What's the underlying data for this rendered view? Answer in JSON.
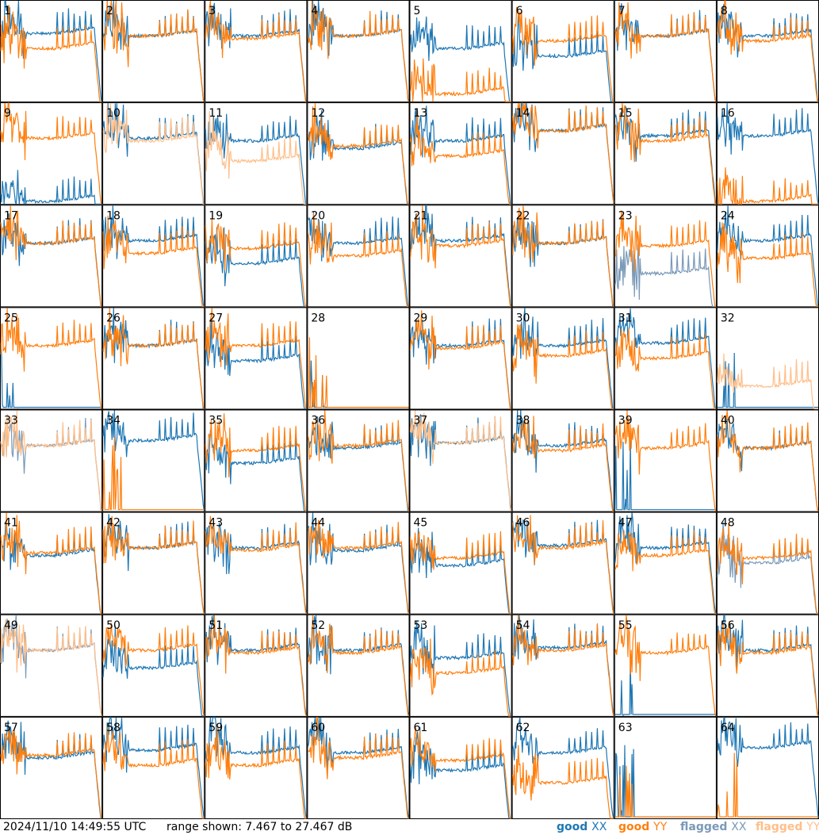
{
  "footer": {
    "timestamp": "2024/11/10 14:49:55 UTC",
    "range": "range shown: 7.467 to 27.467 dB",
    "legend": [
      {
        "key": "good_xx",
        "word": "good",
        "pol": "XX",
        "color": "#1f77b4"
      },
      {
        "key": "good_yy",
        "word": "good",
        "pol": "YY",
        "color": "#ff7f0e"
      },
      {
        "key": "flagged_xx",
        "word": "flagged",
        "pol": "XX",
        "color": "#7a99b8"
      },
      {
        "key": "flagged_yy",
        "word": "flagged",
        "pol": "YY",
        "color": "#ffbf8a"
      }
    ]
  },
  "colors": {
    "good_xx": "#1f77b4",
    "good_yy": "#ff7f0e",
    "flagged_xx": "#7a99b8",
    "flagged_yy": "#ffbf8a"
  },
  "chart_data": {
    "type": "line",
    "layout": "small-multiples 8x8",
    "ylim": [
      7.467,
      27.467
    ],
    "units": "dB",
    "tiles": [
      {
        "id": 1,
        "xx": "good",
        "yy": "good",
        "xx_level": 21,
        "yy_level": 18
      },
      {
        "id": 2,
        "xx": "good",
        "yy": "good",
        "xx_level": 20.5,
        "yy_level": 20.5
      },
      {
        "id": 3,
        "xx": "good",
        "yy": "good",
        "xx_level": 20.5,
        "yy_level": 20
      },
      {
        "id": 4,
        "xx": "good",
        "yy": "good",
        "xx_level": 20.5,
        "yy_level": 20.5
      },
      {
        "id": 5,
        "xx": "good",
        "yy": "good",
        "xx_level": 18,
        "yy_level": 9
      },
      {
        "id": 6,
        "xx": "good",
        "yy": "good",
        "xx_level": 16.5,
        "yy_level": 19.5
      },
      {
        "id": 7,
        "xx": "good",
        "yy": "good",
        "xx_level": 20.5,
        "yy_level": 20.5
      },
      {
        "id": 8,
        "xx": "good",
        "yy": "good",
        "xx_level": 20.5,
        "yy_level": 19.5
      },
      {
        "id": 9,
        "xx": "good",
        "yy": "good",
        "xx_level": 8,
        "yy_level": 20.5
      },
      {
        "id": 10,
        "xx": "good",
        "yy": "flagged",
        "xx_level": 20.5,
        "yy_level": 20
      },
      {
        "id": 11,
        "xx": "good",
        "yy": "flagged",
        "xx_level": 20,
        "yy_level": 16
      },
      {
        "id": 12,
        "xx": "good",
        "yy": "good",
        "xx_level": 18.5,
        "yy_level": 19
      },
      {
        "id": 13,
        "xx": "good",
        "yy": "good",
        "xx_level": 20,
        "yy_level": 17
      },
      {
        "id": 14,
        "xx": "good",
        "yy": "good",
        "xx_level": 22,
        "yy_level": 22
      },
      {
        "id": 15,
        "xx": "good",
        "yy": "good",
        "xx_level": 21,
        "yy_level": 20
      },
      {
        "id": 16,
        "xx": "good",
        "yy": "good",
        "xx_level": 21,
        "yy_level": 8
      },
      {
        "id": 17,
        "xx": "good",
        "yy": "good",
        "xx_level": 20,
        "yy_level": 20
      },
      {
        "id": 18,
        "xx": "good",
        "yy": "good",
        "xx_level": 20.5,
        "yy_level": 18
      },
      {
        "id": 19,
        "xx": "good",
        "yy": "good",
        "xx_level": 16,
        "yy_level": 19
      },
      {
        "id": 20,
        "xx": "good",
        "yy": "good",
        "xx_level": 20,
        "yy_level": 17.5
      },
      {
        "id": 21,
        "xx": "good",
        "yy": "good",
        "xx_level": 20.5,
        "yy_level": 19.5
      },
      {
        "id": 22,
        "xx": "good",
        "yy": "good",
        "xx_level": 20,
        "yy_level": 20
      },
      {
        "id": 23,
        "xx": "flagged",
        "yy": "good",
        "xx_level": 14,
        "yy_level": 19.5
      },
      {
        "id": 24,
        "xx": "good",
        "yy": "good",
        "xx_level": 20.5,
        "yy_level": 17
      },
      {
        "id": 25,
        "xx": "good",
        "yy": "good",
        "xx_level": 7.5,
        "yy_level": 20
      },
      {
        "id": 26,
        "xx": "good",
        "yy": "good",
        "xx_level": 20,
        "yy_level": 20
      },
      {
        "id": 27,
        "xx": "good",
        "yy": "good",
        "xx_level": 17,
        "yy_level": 20
      },
      {
        "id": 28,
        "xx": "good",
        "yy": "good",
        "xx_level": 7.5,
        "yy_level": 7.5
      },
      {
        "id": 29,
        "xx": "good",
        "yy": "good",
        "xx_level": 20,
        "yy_level": 19.5
      },
      {
        "id": 30,
        "xx": "good",
        "yy": "good",
        "xx_level": 20,
        "yy_level": 18
      },
      {
        "id": 31,
        "xx": "good",
        "yy": "good",
        "xx_level": 20.5,
        "yy_level": 17.5
      },
      {
        "id": 32,
        "xx": "good",
        "yy": "flagged",
        "xx_level": 7.5,
        "yy_level": 12
      },
      {
        "id": 33,
        "xx": "flagged",
        "yy": "flagged",
        "xx_level": 20.5,
        "yy_level": 20.5
      },
      {
        "id": 34,
        "xx": "good",
        "yy": "good",
        "xx_level": 21.5,
        "yy_level": 7.5
      },
      {
        "id": 35,
        "xx": "good",
        "yy": "good",
        "xx_level": 17,
        "yy_level": 19.5
      },
      {
        "id": 36,
        "xx": "good",
        "yy": "good",
        "xx_level": 20,
        "yy_level": 20.5
      },
      {
        "id": 37,
        "xx": "good",
        "yy": "flagged",
        "xx_level": 21,
        "yy_level": 21
      },
      {
        "id": 38,
        "xx": "good",
        "yy": "good",
        "xx_level": 20.5,
        "yy_level": 19.5
      },
      {
        "id": 39,
        "xx": "good",
        "yy": "good",
        "xx_level": 7.5,
        "yy_level": 20
      },
      {
        "id": 40,
        "xx": "good",
        "yy": "good",
        "xx_level": 20,
        "yy_level": 20
      },
      {
        "id": 41,
        "xx": "good",
        "yy": "good",
        "xx_level": 19,
        "yy_level": 19.5
      },
      {
        "id": 42,
        "xx": "good",
        "yy": "good",
        "xx_level": 20.5,
        "yy_level": 20.5
      },
      {
        "id": 43,
        "xx": "good",
        "yy": "good",
        "xx_level": 20.5,
        "yy_level": 20
      },
      {
        "id": 44,
        "xx": "good",
        "yy": "good",
        "xx_level": 20,
        "yy_level": 20.5
      },
      {
        "id": 45,
        "xx": "good",
        "yy": "good",
        "xx_level": 17,
        "yy_level": 18.5
      },
      {
        "id": 46,
        "xx": "good",
        "yy": "good",
        "xx_level": 21,
        "yy_level": 20.5
      },
      {
        "id": 47,
        "xx": "good",
        "yy": "good",
        "xx_level": 20.5,
        "yy_level": 19
      },
      {
        "id": 48,
        "xx": "flagged",
        "yy": "good",
        "xx_level": 17.5,
        "yy_level": 18.5
      },
      {
        "id": 49,
        "xx": "flagged",
        "yy": "flagged",
        "xx_level": 20.5,
        "yy_level": 20.5
      },
      {
        "id": 50,
        "xx": "good",
        "yy": "good",
        "xx_level": 17,
        "yy_level": 20.5
      },
      {
        "id": 51,
        "xx": "good",
        "yy": "good",
        "xx_level": 20.5,
        "yy_level": 20
      },
      {
        "id": 52,
        "xx": "good",
        "yy": "good",
        "xx_level": 20.5,
        "yy_level": 20
      },
      {
        "id": 53,
        "xx": "good",
        "yy": "good",
        "xx_level": 19,
        "yy_level": 16
      },
      {
        "id": 54,
        "xx": "good",
        "yy": "good",
        "xx_level": 21,
        "yy_level": 20.5
      },
      {
        "id": 55,
        "xx": "good",
        "yy": "good",
        "xx_level": 7.5,
        "yy_level": 20
      },
      {
        "id": 56,
        "xx": "good",
        "yy": "good",
        "xx_level": 20.5,
        "yy_level": 20
      },
      {
        "id": 57,
        "xx": "good",
        "yy": "good",
        "xx_level": 19.5,
        "yy_level": 20
      },
      {
        "id": 58,
        "xx": "good",
        "yy": "good",
        "xx_level": 21,
        "yy_level": 18
      },
      {
        "id": 59,
        "xx": "good",
        "yy": "good",
        "xx_level": 20.5,
        "yy_level": 18
      },
      {
        "id": 60,
        "xx": "good",
        "yy": "good",
        "xx_level": 20.5,
        "yy_level": 19.5
      },
      {
        "id": 61,
        "xx": "good",
        "yy": "good",
        "xx_level": 17,
        "yy_level": 19
      },
      {
        "id": 62,
        "xx": "good",
        "yy": "good",
        "xx_level": 20.5,
        "yy_level": 14.5
      },
      {
        "id": 63,
        "xx": "good",
        "yy": "good",
        "xx_level": 7.5,
        "yy_level": 7.5
      },
      {
        "id": 64,
        "xx": "good",
        "yy": "good",
        "xx_level": 21.5,
        "yy_level": 7.5
      }
    ]
  }
}
